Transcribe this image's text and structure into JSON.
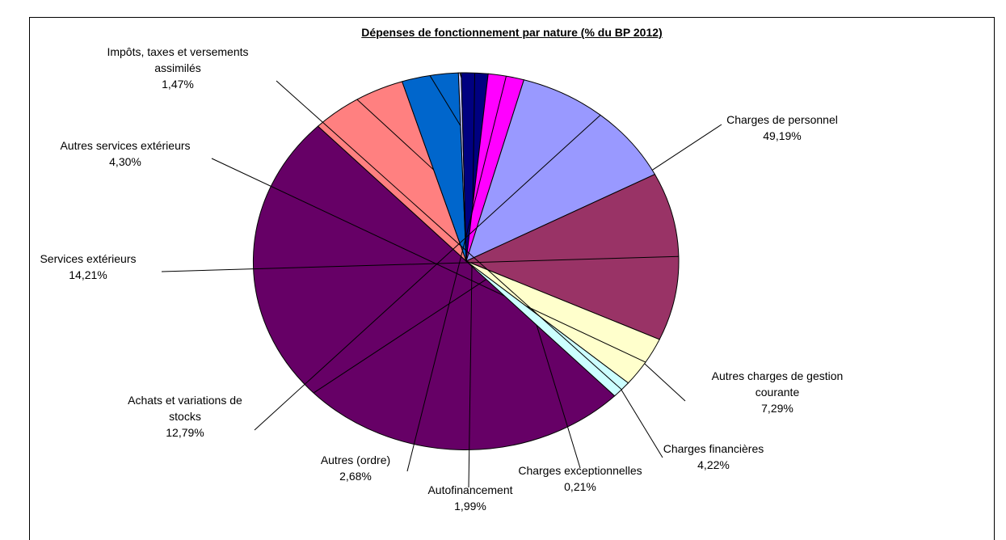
{
  "chart_data": {
    "type": "pie",
    "title": "Dépenses de fonctionnement par nature (% du BP 2012)",
    "slices": [
      {
        "lines": [
          "Charges de personnel"
        ],
        "value_label": "49,19%",
        "value": 49.19,
        "color": "#660066"
      },
      {
        "lines": [
          "Autres charges de gestion",
          "courante"
        ],
        "value_label": "7,29%",
        "value": 7.29,
        "color": "#FF8080"
      },
      {
        "lines": [
          "Charges financières"
        ],
        "value_label": "4,22%",
        "value": 4.22,
        "color": "#0066CC"
      },
      {
        "lines": [
          "Charges exceptionnelles"
        ],
        "value_label": "0,21%",
        "value": 0.21,
        "color": "#CCCCFF"
      },
      {
        "lines": [
          "Autofinancement"
        ],
        "value_label": "1,99%",
        "value": 1.99,
        "color": "#000080"
      },
      {
        "lines": [
          "Autres (ordre)"
        ],
        "value_label": "2,68%",
        "value": 2.68,
        "color": "#FF00FF"
      },
      {
        "lines": [
          "Achats et variations de",
          "stocks"
        ],
        "value_label": "12,79%",
        "value": 12.79,
        "color": "#9999FF"
      },
      {
        "lines": [
          "Services extérieurs"
        ],
        "value_label": "14,21%",
        "value": 14.21,
        "color": "#993366"
      },
      {
        "lines": [
          "Autres services extérieurs"
        ],
        "value_label": "4,30%",
        "value": 4.3,
        "color": "#FFFFCC"
      },
      {
        "lines": [
          "Impôts, taxes et versements",
          "assimilés"
        ],
        "value_label": "1,47%",
        "value": 1.47,
        "color": "#CCFFFF"
      }
    ]
  }
}
